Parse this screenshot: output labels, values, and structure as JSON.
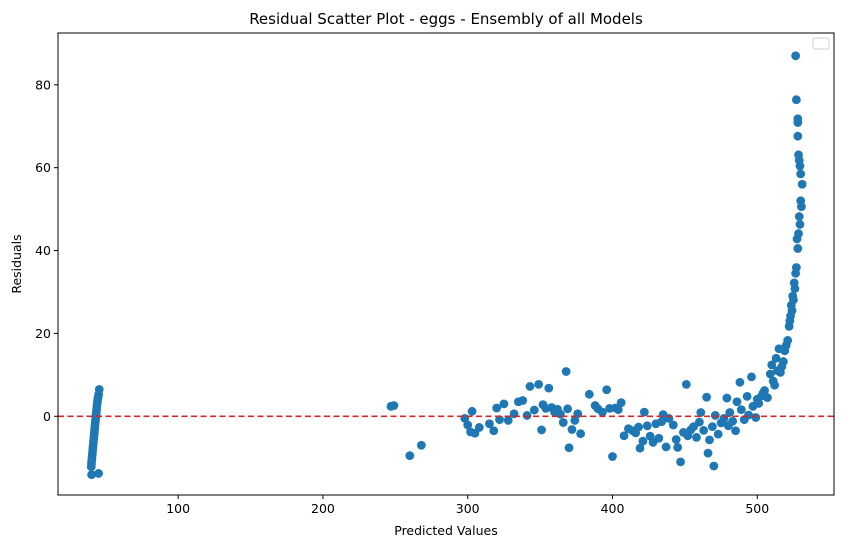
{
  "chart_data": {
    "type": "scatter",
    "title": "Residual Scatter Plot - eggs  - Ensembly of all Models",
    "xlabel": "Predicted Values",
    "ylabel": "Residuals",
    "xlim": [
      17,
      553
    ],
    "ylim": [
      -19,
      92.5
    ],
    "xticks": [
      100,
      200,
      300,
      400,
      500
    ],
    "yticks": [
      0,
      20,
      40,
      60,
      80
    ],
    "grid": false,
    "legend": "top-right (empty)",
    "point_color": "#1f77b4",
    "reference_line": {
      "y": 0,
      "color": "#d62728",
      "style": "dashed"
    },
    "points": [
      [
        40.2,
        -14.1
      ],
      [
        45.0,
        -13.8
      ],
      [
        40.0,
        -12.2
      ],
      [
        40.1,
        -11.5
      ],
      [
        40.3,
        -10.7
      ],
      [
        40.5,
        -10.0
      ],
      [
        40.7,
        -9.2
      ],
      [
        40.9,
        -8.4
      ],
      [
        41.1,
        -7.6
      ],
      [
        41.3,
        -6.9
      ],
      [
        41.5,
        -6.1
      ],
      [
        41.7,
        -5.4
      ],
      [
        41.9,
        -4.6
      ],
      [
        42.1,
        -3.9
      ],
      [
        42.3,
        -3.1
      ],
      [
        42.5,
        -2.4
      ],
      [
        42.7,
        -1.7
      ],
      [
        42.9,
        -1.0
      ],
      [
        43.1,
        -0.3
      ],
      [
        43.3,
        0.4
      ],
      [
        43.5,
        1.1
      ],
      [
        43.7,
        1.8
      ],
      [
        43.9,
        2.5
      ],
      [
        44.1,
        3.2
      ],
      [
        44.4,
        3.9
      ],
      [
        44.7,
        4.6
      ],
      [
        45.1,
        5.3
      ],
      [
        45.5,
        6.5
      ],
      [
        247.0,
        2.4
      ],
      [
        249.0,
        2.6
      ],
      [
        260.0,
        -9.5
      ],
      [
        268.0,
        -7.0
      ],
      [
        298.0,
        -0.5
      ],
      [
        300.0,
        -2.1
      ],
      [
        302.0,
        -3.8
      ],
      [
        303.0,
        1.2
      ],
      [
        305.0,
        -4.1
      ],
      [
        308.0,
        -2.7
      ],
      [
        315.0,
        -1.8
      ],
      [
        318.0,
        -3.5
      ],
      [
        320.0,
        2.0
      ],
      [
        322.0,
        -0.8
      ],
      [
        325.0,
        3.0
      ],
      [
        328.0,
        -1.0
      ],
      [
        332.0,
        0.6
      ],
      [
        335.0,
        3.5
      ],
      [
        338.0,
        3.8
      ],
      [
        341.0,
        0.2
      ],
      [
        343.0,
        7.2
      ],
      [
        346.0,
        1.5
      ],
      [
        349.0,
        7.7
      ],
      [
        351.0,
        -3.3
      ],
      [
        352.0,
        2.8
      ],
      [
        354.0,
        1.9
      ],
      [
        356.0,
        6.8
      ],
      [
        358.0,
        2.1
      ],
      [
        360.0,
        1.0
      ],
      [
        362.0,
        1.7
      ],
      [
        364.0,
        0.5
      ],
      [
        366.0,
        -1.5
      ],
      [
        368.0,
        10.8
      ],
      [
        369.0,
        1.8
      ],
      [
        370.0,
        -7.6
      ],
      [
        372.0,
        -3.2
      ],
      [
        374.0,
        -1.0
      ],
      [
        376.0,
        0.6
      ],
      [
        378.0,
        -4.2
      ],
      [
        384.0,
        5.3
      ],
      [
        388.0,
        2.6
      ],
      [
        390.0,
        1.8
      ],
      [
        393.0,
        1.0
      ],
      [
        396.0,
        6.4
      ],
      [
        398.0,
        1.9
      ],
      [
        400.0,
        -9.7
      ],
      [
        402.0,
        2.0
      ],
      [
        404.0,
        1.6
      ],
      [
        406.0,
        3.3
      ],
      [
        408.0,
        -4.7
      ],
      [
        411.0,
        -3.0
      ],
      [
        414.0,
        -3.5
      ],
      [
        416.0,
        -4.0
      ],
      [
        418.0,
        -2.6
      ],
      [
        419.0,
        -7.7
      ],
      [
        421.0,
        -6.0
      ],
      [
        422.0,
        1.0
      ],
      [
        424.0,
        -2.3
      ],
      [
        426.0,
        -4.8
      ],
      [
        428.0,
        -6.3
      ],
      [
        430.0,
        -1.8
      ],
      [
        432.0,
        -5.3
      ],
      [
        434.0,
        -1.3
      ],
      [
        435.0,
        0.4
      ],
      [
        437.0,
        -7.4
      ],
      [
        439.0,
        -0.5
      ],
      [
        442.0,
        -2.1
      ],
      [
        444.0,
        -5.6
      ],
      [
        445.0,
        -7.5
      ],
      [
        447.0,
        -11.0
      ],
      [
        449.0,
        -3.9
      ],
      [
        451.0,
        7.7
      ],
      [
        452.0,
        -4.7
      ],
      [
        454.0,
        -3.3
      ],
      [
        456.0,
        -2.5
      ],
      [
        458.0,
        -5.1
      ],
      [
        460.0,
        -1.4
      ],
      [
        461.0,
        0.9
      ],
      [
        463.0,
        -3.4
      ],
      [
        465.0,
        4.6
      ],
      [
        466.0,
        -8.9
      ],
      [
        467.0,
        -5.7
      ],
      [
        469.0,
        -2.5
      ],
      [
        470.0,
        -12.0
      ],
      [
        471.0,
        0.2
      ],
      [
        473.0,
        -4.3
      ],
      [
        475.0,
        -1.6
      ],
      [
        477.0,
        -0.5
      ],
      [
        479.0,
        4.4
      ],
      [
        480.0,
        -2.3
      ],
      [
        481.0,
        0.9
      ],
      [
        483.0,
        -1.2
      ],
      [
        485.0,
        -3.5
      ],
      [
        486.0,
        3.5
      ],
      [
        488.0,
        8.2
      ],
      [
        489.0,
        1.6
      ],
      [
        491.0,
        -0.8
      ],
      [
        493.0,
        4.8
      ],
      [
        494.0,
        0.3
      ],
      [
        496.0,
        9.5
      ],
      [
        497.0,
        2.4
      ],
      [
        499.0,
        -0.3
      ],
      [
        500.0,
        4.1
      ],
      [
        501.0,
        3.1
      ],
      [
        503.0,
        4.9
      ],
      [
        504.0,
        5.6
      ],
      [
        505.0,
        6.2
      ],
      [
        507.0,
        4.5
      ],
      [
        509.0,
        10.2
      ],
      [
        510.0,
        12.4
      ],
      [
        511.0,
        8.5
      ],
      [
        512.0,
        7.5
      ],
      [
        513.0,
        14.0
      ],
      [
        514.0,
        11.0
      ],
      [
        515.0,
        16.3
      ],
      [
        516.0,
        10.6
      ],
      [
        517.0,
        12.0
      ],
      [
        518.0,
        13.2
      ],
      [
        519.0,
        15.8
      ],
      [
        520.0,
        17.1
      ],
      [
        521.0,
        18.3
      ],
      [
        522.0,
        21.7
      ],
      [
        522.5,
        23.0
      ],
      [
        523.0,
        24.2
      ],
      [
        523.5,
        26.8
      ],
      [
        524.0,
        25.5
      ],
      [
        524.5,
        29.0
      ],
      [
        525.0,
        28.1
      ],
      [
        525.5,
        32.2
      ],
      [
        526.0,
        30.8
      ],
      [
        526.5,
        34.5
      ],
      [
        527.0,
        35.9
      ],
      [
        527.5,
        42.8
      ],
      [
        528.0,
        40.5
      ],
      [
        528.5,
        44.1
      ],
      [
        529.0,
        48.2
      ],
      [
        529.5,
        46.3
      ],
      [
        530.0,
        52.0
      ],
      [
        530.5,
        50.6
      ],
      [
        531.0,
        56.0
      ],
      [
        530.0,
        58.5
      ],
      [
        529.5,
        60.4
      ],
      [
        529.0,
        61.8
      ],
      [
        528.5,
        63.1
      ],
      [
        528.0,
        67.6
      ],
      [
        528.0,
        70.9
      ],
      [
        528.0,
        71.8
      ],
      [
        527.0,
        76.4
      ],
      [
        526.5,
        87.0
      ]
    ]
  }
}
